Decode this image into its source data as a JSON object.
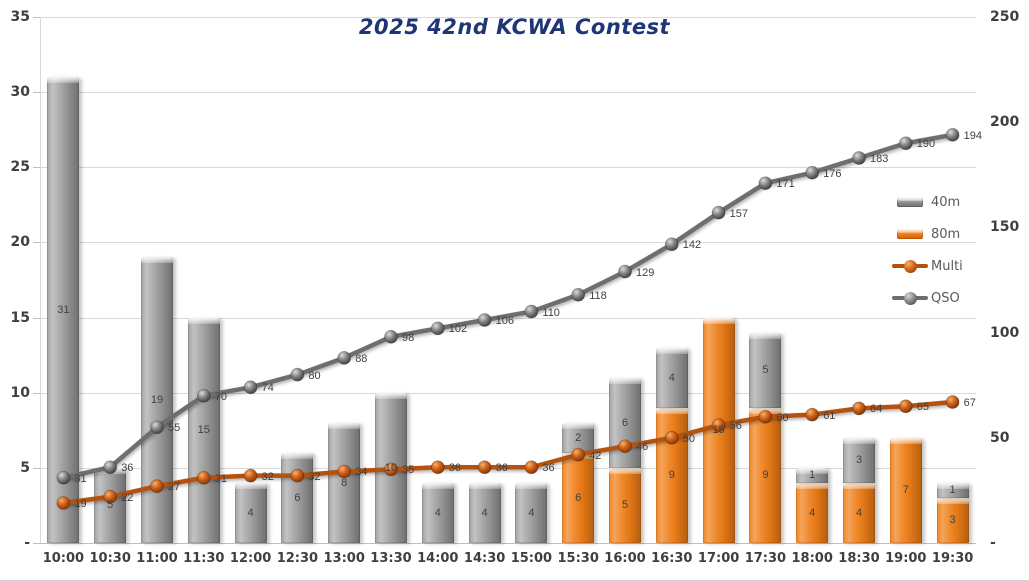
{
  "title": "2025 42nd KCWA Contest",
  "colors": {
    "title": "#1f3576",
    "bar_40m": "#9d9d9d",
    "bar_80m": "#ee7d16",
    "multi_line": "#b5520e",
    "qso_line": "#6e6e6e",
    "gridline": "#d9d9d9",
    "axis_text": "#3f3f3f",
    "data_label": "#404040",
    "legend_text": "#595959"
  },
  "axes": {
    "left": {
      "tick_labels": [
        "35",
        "30",
        "25",
        "20",
        "15",
        "10",
        "5",
        "-"
      ],
      "tick_values": [
        35,
        30,
        25,
        20,
        15,
        10,
        5,
        0
      ]
    },
    "right": {
      "tick_labels": [
        "250",
        "200",
        "150",
        "100",
        "50",
        "-"
      ],
      "tick_values": [
        250,
        200,
        150,
        100,
        50,
        0
      ]
    }
  },
  "legend": [
    {
      "label": "40m",
      "type": "bar",
      "style": "gray"
    },
    {
      "label": "80m",
      "type": "bar",
      "style": "orange"
    },
    {
      "label": "Multi",
      "type": "line",
      "style": "rust"
    },
    {
      "label": "QSO",
      "type": "line",
      "style": "grayline"
    }
  ],
  "chart_data": {
    "type": "bar",
    "subtype": "stacked-bar-with-lines-combo",
    "title": "2025 42nd KCWA Contest",
    "categories": [
      "10:00",
      "10:30",
      "11:00",
      "11:30",
      "12:00",
      "12:30",
      "13:00",
      "13:30",
      "14:00",
      "14:30",
      "15:00",
      "15:30",
      "16:00",
      "16:30",
      "17:00",
      "17:30",
      "18:00",
      "18:30",
      "19:00",
      "19:30"
    ],
    "series": [
      {
        "name": "40m",
        "type": "bar",
        "axis": "left",
        "stack": "bands",
        "stack_position": "top",
        "values": [
          31,
          5,
          19,
          15,
          4,
          6,
          8,
          10,
          4,
          4,
          4,
          2,
          6,
          4,
          0,
          5,
          1,
          3,
          0,
          1
        ]
      },
      {
        "name": "80m",
        "type": "bar",
        "axis": "left",
        "stack": "bands",
        "stack_position": "bottom",
        "values": [
          0,
          0,
          0,
          0,
          0,
          0,
          0,
          0,
          0,
          0,
          0,
          6,
          5,
          9,
          15,
          9,
          4,
          4,
          7,
          3
        ]
      },
      {
        "name": "Multi",
        "type": "line",
        "axis": "right",
        "values": [
          19,
          22,
          27,
          31,
          32,
          32,
          34,
          35,
          36,
          36,
          36,
          42,
          46,
          50,
          56,
          60,
          61,
          64,
          65,
          67
        ]
      },
      {
        "name": "QSO",
        "type": "line",
        "axis": "right",
        "values": [
          31,
          36,
          55,
          70,
          74,
          80,
          88,
          98,
          102,
          106,
          110,
          118,
          129,
          142,
          157,
          171,
          176,
          183,
          190,
          194
        ]
      }
    ],
    "left_axis": {
      "min": 0,
      "max": 35,
      "step": 5,
      "zero_label": "-"
    },
    "right_axis": {
      "min": 0,
      "max": 250,
      "step": 50,
      "zero_label": "-"
    },
    "grid": "horizontal-major-left-axis",
    "legend_position": "middle-right",
    "data_labels": "all-points-and-segments"
  }
}
